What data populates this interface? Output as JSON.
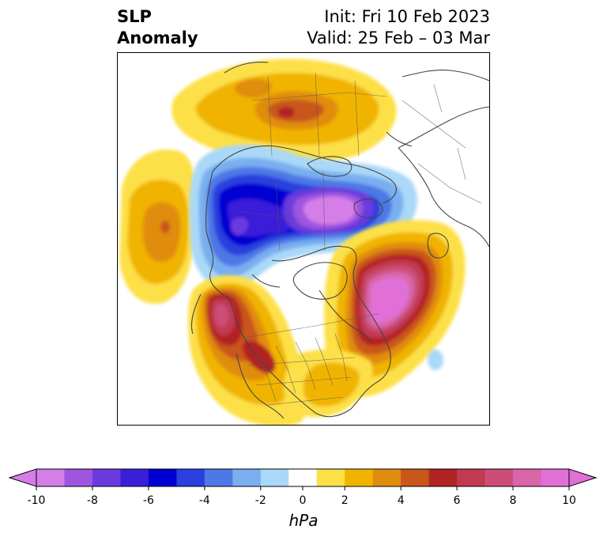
{
  "title": {
    "left_line1": "SLP",
    "left_line2": "Anomaly",
    "right_line1": "Init: Fri 10 Feb 2023",
    "right_line2": "Valid: 25 Feb – 03 Mar"
  },
  "map": {
    "projection": "polar-stereographic",
    "variable": "sea level pressure anomaly",
    "features": [
      {
        "name": "negative-anomaly-canada-arctic",
        "sign": "negative",
        "peak_hpa": -10
      },
      {
        "name": "positive-anomaly-north-atlantic",
        "sign": "positive",
        "peak_hpa": 10
      },
      {
        "name": "positive-anomaly-northeast-pacific",
        "sign": "positive",
        "peak_hpa": 8
      },
      {
        "name": "positive-anomaly-siberia",
        "sign": "positive",
        "peak_hpa": 6
      },
      {
        "name": "positive-anomaly-north-pacific",
        "sign": "positive",
        "peak_hpa": 4
      }
    ]
  },
  "colorbar": {
    "unit": "hPa",
    "extend": "both",
    "ticks": [
      "-10",
      "-8",
      "-6",
      "-4",
      "-2",
      "0",
      "2",
      "4",
      "6",
      "8",
      "10"
    ],
    "tick_values": [
      -10,
      -8,
      -6,
      -4,
      -2,
      0,
      2,
      4,
      6,
      8,
      10
    ],
    "bounds": [
      -10,
      -9,
      -8,
      -7,
      -6,
      -5,
      -4,
      -3,
      -2,
      -1,
      1,
      2,
      3,
      4,
      5,
      6,
      7,
      8,
      9,
      10
    ],
    "colors": [
      "#d57ee8",
      "#9e55e0",
      "#6b3adc",
      "#3a1fd8",
      "#0000d2",
      "#2a3fde",
      "#4e78e6",
      "#79aeef",
      "#aad8f8",
      "#ffffff",
      "#fde047",
      "#f0b400",
      "#e08c0e",
      "#c9561a",
      "#b22424",
      "#c13a52",
      "#cc4e78",
      "#d866a8",
      "#e070d6"
    ],
    "under_color": "#d57ee8",
    "over_color": "#e070d6"
  }
}
